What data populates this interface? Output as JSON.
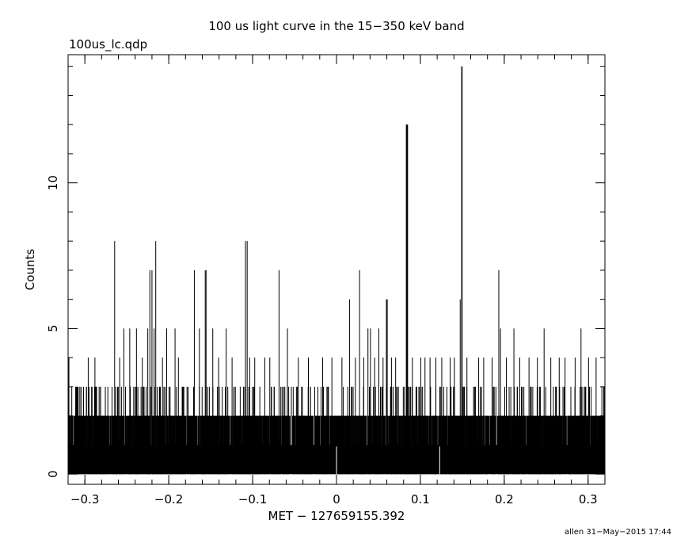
{
  "chart_data": {
    "type": "bar",
    "title": "100 us light curve in the 15−350 keV band",
    "subtitle": "100us_lc.qdp",
    "xlabel": "MET − 127659155.392",
    "ylabel": "Counts",
    "footer": "allen 31−May−2015 17:44",
    "xlim": [
      -0.32,
      0.32
    ],
    "ylim": [
      -0.35,
      14.4
    ],
    "x_ticks": [
      -0.3,
      -0.2,
      -0.1,
      0,
      0.1,
      0.2,
      0.3
    ],
    "x_tick_labels": [
      "−0.3",
      "−0.2",
      "−0.1",
      "0",
      "0.1",
      "0.2",
      "0.3"
    ],
    "y_ticks": [
      0,
      5,
      10
    ],
    "y_tick_labels": [
      "0",
      "5",
      "10"
    ],
    "bin_width": 0.0001,
    "baseline_counts": 1,
    "series": [
      {
        "values_at_x": {
          "peaks": [
            [
              -0.319,
              4
            ],
            [
              -0.296,
              4
            ],
            [
              -0.288,
              4
            ],
            [
              -0.2645,
              8
            ],
            [
              -0.2585,
              4
            ],
            [
              -0.2535,
              5
            ],
            [
              -0.2465,
              5
            ],
            [
              -0.2385,
              5
            ],
            [
              -0.2315,
              4
            ],
            [
              -0.225,
              5
            ],
            [
              -0.2225,
              7
            ],
            [
              -0.22,
              7
            ],
            [
              -0.2175,
              5
            ],
            [
              -0.2155,
              8
            ],
            [
              -0.2075,
              4
            ],
            [
              -0.2025,
              5
            ],
            [
              -0.1925,
              5
            ],
            [
              -0.1885,
              4
            ],
            [
              -0.1695,
              7
            ],
            [
              -0.1635,
              5
            ],
            [
              -0.1565,
              7
            ],
            [
              -0.1555,
              7
            ],
            [
              -0.1475,
              5
            ],
            [
              -0.1405,
              4
            ],
            [
              -0.1315,
              5
            ],
            [
              -0.1245,
              4
            ],
            [
              -0.1085,
              8
            ],
            [
              -0.1065,
              8
            ],
            [
              -0.1035,
              4
            ],
            [
              -0.0975,
              4
            ],
            [
              -0.0855,
              4
            ],
            [
              -0.0795,
              4
            ],
            [
              -0.0685,
              7
            ],
            [
              -0.0585,
              5
            ],
            [
              -0.0455,
              4
            ],
            [
              -0.0335,
              4
            ],
            [
              -0.0165,
              4
            ],
            [
              -0.0055,
              4
            ],
            [
              0.0065,
              4
            ],
            [
              0.0155,
              6
            ],
            [
              0.0225,
              4
            ],
            [
              0.0275,
              7
            ],
            [
              0.0325,
              4
            ],
            [
              0.0375,
              5
            ],
            [
              0.0405,
              5
            ],
            [
              0.0455,
              4
            ],
            [
              0.0505,
              5
            ],
            [
              0.0555,
              4
            ],
            [
              0.0595,
              6
            ],
            [
              0.0605,
              6
            ],
            [
              0.0655,
              4
            ],
            [
              0.0705,
              4
            ],
            [
              0.0835,
              12
            ],
            [
              0.0845,
              12
            ],
            [
              0.0905,
              4
            ],
            [
              0.1005,
              4
            ],
            [
              0.1055,
              4
            ],
            [
              0.1115,
              4
            ],
            [
              0.1185,
              4
            ],
            [
              0.1255,
              4
            ],
            [
              0.1355,
              4
            ],
            [
              0.1405,
              4
            ],
            [
              0.1475,
              6
            ],
            [
              0.1495,
              14
            ],
            [
              0.1555,
              4
            ],
            [
              0.1695,
              4
            ],
            [
              0.1755,
              4
            ],
            [
              0.1855,
              4
            ],
            [
              0.1935,
              7
            ],
            [
              0.1955,
              5
            ],
            [
              0.2025,
              4
            ],
            [
              0.2115,
              5
            ],
            [
              0.2185,
              4
            ],
            [
              0.2295,
              4
            ],
            [
              0.2395,
              4
            ],
            [
              0.2475,
              5
            ],
            [
              0.2555,
              4
            ],
            [
              0.2655,
              4
            ],
            [
              0.2725,
              4
            ],
            [
              0.2845,
              4
            ],
            [
              0.2915,
              5
            ],
            [
              0.3005,
              4
            ],
            [
              0.3095,
              4
            ]
          ]
        }
      }
    ]
  }
}
